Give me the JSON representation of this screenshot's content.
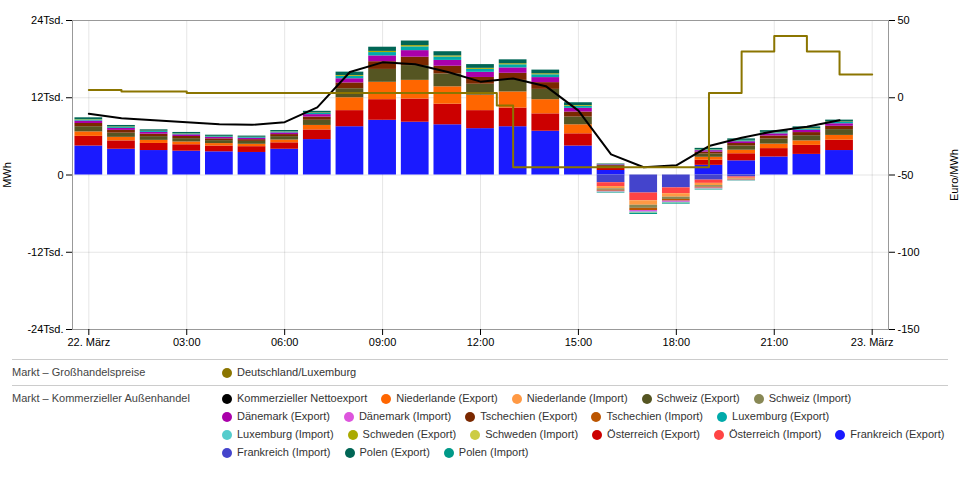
{
  "chart_data": {
    "type": "bar",
    "stacked": true,
    "grid": true,
    "legend": "bottom",
    "ylabel": "MWh",
    "y2label": "Euro/MWh",
    "x": [
      0,
      1,
      2,
      3,
      4,
      5,
      6,
      7,
      8,
      9,
      10,
      11,
      12,
      13,
      14,
      15,
      16,
      17,
      18,
      19,
      20,
      21,
      22,
      23
    ],
    "xlim": [
      -0.5,
      24.5
    ],
    "xticks": [
      {
        "value": 0,
        "label": "22. März"
      },
      {
        "value": 3,
        "label": "03:00"
      },
      {
        "value": 6,
        "label": "06:00"
      },
      {
        "value": 9,
        "label": "09:00"
      },
      {
        "value": 12,
        "label": "12:00"
      },
      {
        "value": 15,
        "label": "15:00"
      },
      {
        "value": 18,
        "label": "18:00"
      },
      {
        "value": 21,
        "label": "21:00"
      },
      {
        "value": 24,
        "label": "23. März"
      }
    ],
    "ylim": [
      -24000,
      24000
    ],
    "yticks": [
      {
        "value": -24000,
        "label": "-24Tsd."
      },
      {
        "value": -12000,
        "label": "-12Tsd."
      },
      0,
      {
        "value": 12000,
        "label": "12Tsd."
      },
      {
        "value": 24000,
        "label": "24Tsd."
      }
    ],
    "y2lim": [
      -150,
      50
    ],
    "y2ticks": [
      -150,
      -100,
      -50,
      0,
      50
    ],
    "series": [
      {
        "name": "Frankreich (Export)",
        "color": "#1a1aff",
        "values": [
          4500,
          4000,
          3800,
          3700,
          3600,
          3500,
          4000,
          5500,
          7500,
          8500,
          8200,
          7800,
          7200,
          7500,
          6800,
          4500,
          700,
          0,
          0,
          1500,
          2200,
          2800,
          3200,
          3800
        ]
      },
      {
        "name": "Österreich (Export)",
        "color": "#cc0000",
        "values": [
          1500,
          1300,
          1100,
          1000,
          900,
          900,
          1000,
          1500,
          2500,
          3200,
          3600,
          3200,
          2800,
          2900,
          2700,
          1900,
          400,
          0,
          0,
          800,
          1100,
          1300,
          1400,
          1600
        ]
      },
      {
        "name": "Niederlande (Export)",
        "color": "#ff6600",
        "values": [
          700,
          550,
          480,
          430,
          380,
          370,
          430,
          700,
          2000,
          2700,
          2900,
          2700,
          2400,
          2500,
          2200,
          1400,
          0,
          0,
          0,
          450,
          550,
          700,
          700,
          750
        ]
      },
      {
        "name": "Schweiz (Export)",
        "color": "#555522",
        "values": [
          800,
          650,
          580,
          520,
          460,
          450,
          530,
          800,
          1400,
          2000,
          2300,
          2000,
          1700,
          1800,
          1600,
          1200,
          250,
          0,
          0,
          500,
          650,
          800,
          800,
          900
        ]
      },
      {
        "name": "Tschechien (Export)",
        "color": "#7a2800",
        "values": [
          500,
          430,
          380,
          330,
          280,
          270,
          320,
          500,
          900,
          1200,
          1300,
          1200,
          1050,
          1100,
          1050,
          780,
          130,
          0,
          0,
          300,
          390,
          460,
          490,
          520
        ]
      },
      {
        "name": "Dänemark (Export)",
        "color": "#aa00aa",
        "values": [
          380,
          320,
          280,
          260,
          230,
          225,
          260,
          380,
          650,
          900,
          1020,
          900,
          800,
          840,
          780,
          580,
          100,
          0,
          0,
          230,
          280,
          330,
          360,
          390
        ]
      },
      {
        "name": "Luxemburg (Export)",
        "color": "#00aaaa",
        "values": [
          180,
          155,
          140,
          130,
          115,
          112,
          130,
          190,
          380,
          520,
          580,
          520,
          460,
          480,
          440,
          320,
          50,
          0,
          0,
          125,
          155,
          175,
          185,
          200
        ]
      },
      {
        "name": "Schweden (Export)",
        "color": "#aaaa00",
        "values": [
          65,
          55,
          48,
          44,
          39,
          38,
          44,
          65,
          130,
          180,
          200,
          180,
          160,
          165,
          155,
          115,
          18,
          0,
          0,
          44,
          55,
          63,
          67,
          72
        ]
      },
      {
        "name": "Polen (Export)",
        "color": "#006655",
        "values": [
          260,
          235,
          210,
          195,
          180,
          178,
          195,
          260,
          520,
          650,
          710,
          650,
          580,
          605,
          570,
          430,
          70,
          0,
          0,
          190,
          230,
          260,
          275,
          295
        ]
      },
      {
        "name": "Frankreich (Import)",
        "color": "#4444cc",
        "values": [
          0,
          0,
          0,
          0,
          0,
          0,
          0,
          0,
          0,
          0,
          0,
          0,
          0,
          0,
          0,
          0,
          -1200,
          -2800,
          -2000,
          -800,
          -300,
          0,
          0,
          0
        ]
      },
      {
        "name": "Österreich (Import)",
        "color": "#ff4444",
        "values": [
          0,
          0,
          0,
          0,
          0,
          0,
          0,
          0,
          0,
          0,
          0,
          0,
          0,
          0,
          0,
          0,
          -600,
          -1200,
          -900,
          -500,
          -200,
          0,
          0,
          0
        ]
      },
      {
        "name": "Niederlande (Import)",
        "color": "#ff9944",
        "values": [
          0,
          0,
          0,
          0,
          0,
          0,
          0,
          0,
          0,
          0,
          0,
          0,
          0,
          0,
          0,
          0,
          -350,
          -700,
          -550,
          -350,
          -150,
          0,
          0,
          0
        ]
      },
      {
        "name": "Schweiz (Import)",
        "color": "#888855",
        "values": [
          0,
          0,
          0,
          0,
          0,
          0,
          0,
          0,
          0,
          0,
          0,
          0,
          0,
          0,
          0,
          0,
          -220,
          -480,
          -350,
          -230,
          -100,
          0,
          0,
          0
        ]
      },
      {
        "name": "Tschechien (Import)",
        "color": "#bb5500",
        "values": [
          0,
          0,
          0,
          0,
          0,
          0,
          0,
          0,
          0,
          0,
          0,
          0,
          0,
          0,
          0,
          0,
          -155,
          -340,
          -260,
          -160,
          -70,
          0,
          0,
          0
        ]
      },
      {
        "name": "Dänemark (Import)",
        "color": "#dd55dd",
        "values": [
          0,
          0,
          0,
          0,
          0,
          0,
          0,
          0,
          0,
          0,
          0,
          0,
          0,
          0,
          0,
          0,
          -115,
          -250,
          -190,
          -120,
          -52,
          0,
          0,
          0
        ]
      },
      {
        "name": "Luxemburg (Import)",
        "color": "#55cccc",
        "values": [
          0,
          0,
          0,
          0,
          0,
          0,
          0,
          0,
          0,
          0,
          0,
          0,
          0,
          0,
          0,
          0,
          -60,
          -130,
          -100,
          -62,
          -27,
          0,
          0,
          0
        ]
      },
      {
        "name": "Schweden (Import)",
        "color": "#cccc44",
        "values": [
          0,
          0,
          0,
          0,
          0,
          0,
          0,
          0,
          0,
          0,
          0,
          0,
          0,
          0,
          0,
          0,
          -21,
          -47,
          -36,
          -22,
          -10,
          0,
          0,
          0
        ]
      },
      {
        "name": "Polen (Import)",
        "color": "#009988",
        "values": [
          0,
          0,
          0,
          0,
          0,
          0,
          0,
          0,
          0,
          0,
          0,
          0,
          0,
          0,
          0,
          0,
          -85,
          -185,
          -140,
          -87,
          -38,
          0,
          0,
          0
        ]
      },
      {
        "name": "Kommerzieller Nettoexport",
        "type": "line",
        "color": "#000000",
        "values": [
          9500,
          8800,
          8500,
          8200,
          7900,
          7800,
          8200,
          10500,
          16000,
          17500,
          17200,
          16000,
          14500,
          15000,
          13800,
          10000,
          3200,
          1200,
          1500,
          4500,
          5800,
          6800,
          7500,
          8500
        ]
      },
      {
        "name": "Deutschland/Luxemburg",
        "type": "line",
        "line_style": "step",
        "axis": "y2",
        "color": "#8B7500",
        "x": [
          0,
          1,
          2,
          3,
          4,
          5,
          6,
          7,
          8,
          9,
          10,
          11,
          12,
          12.5,
          13,
          14,
          15,
          16,
          17,
          18,
          19,
          19.5,
          20,
          21,
          22,
          23,
          24
        ],
        "values": [
          5,
          5,
          4,
          4,
          3,
          3,
          3,
          3,
          3,
          3,
          3,
          3,
          3,
          3,
          -5,
          -45,
          -45,
          -45,
          -45,
          -45,
          -45,
          3,
          3,
          30,
          40,
          30,
          15
        ]
      }
    ],
    "legend_groups": [
      {
        "title": "Markt – Großhandelspreise",
        "items": [
          "Deutschland/Luxemburg"
        ]
      },
      {
        "title": "Markt – Kommerzieller Außenhandel",
        "items": [
          "Kommerzieller Nettoexport",
          "Niederlande (Export)",
          "Niederlande (Import)",
          "Schweiz (Export)",
          "Schweiz (Import)",
          "Dänemark (Export)",
          "Dänemark (Import)",
          "Tschechien (Export)",
          "Tschechien (Import)",
          "Luxemburg (Export)",
          "Luxemburg (Import)",
          "Schweden (Export)",
          "Schweden (Import)",
          "Österreich (Export)",
          "Österreich (Import)",
          "Frankreich (Export)",
          "Frankreich (Import)",
          "Polen (Export)",
          "Polen (Import)"
        ]
      }
    ]
  }
}
